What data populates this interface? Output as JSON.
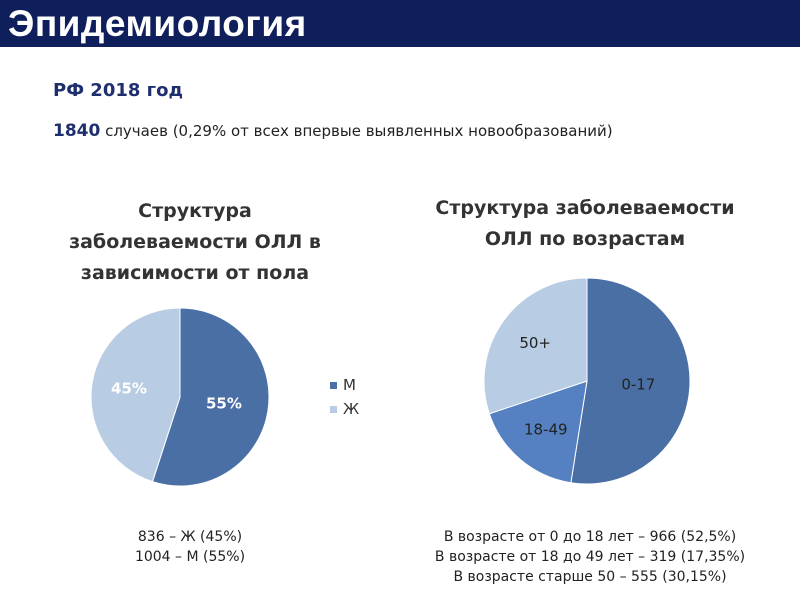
{
  "header": {
    "title": "Эпидемиология"
  },
  "subtitle": {
    "text": "РФ 2018 год"
  },
  "summary": {
    "count": "1840",
    "text": " случаев (0,29% от всех впервые выявленных новообразований)"
  },
  "chart_data": [
    {
      "type": "pie",
      "title_lines": [
        "Структура",
        "заболеваемости ОЛЛ в",
        "зависимости от пола"
      ],
      "slices": [
        {
          "label": "М",
          "value": 55,
          "text": "55%",
          "color": "#4a6fa5"
        },
        {
          "label": "Ж",
          "value": 45,
          "text": "45%",
          "color": "#b8cce4"
        }
      ],
      "legend": [
        "М",
        "Ж"
      ],
      "legend_position": "right",
      "notes": [
        "836 – Ж (45%)",
        "1004 – М (55%)"
      ]
    },
    {
      "type": "pie",
      "title_lines": [
        "Структура заболеваемости",
        "ОЛЛ по возрастам"
      ],
      "slices": [
        {
          "label": "0-17",
          "value": 52.5,
          "color": "#4a6fa5"
        },
        {
          "label": "18-49",
          "value": 17.35,
          "color": "#5581c2"
        },
        {
          "label": "50+",
          "value": 30.15,
          "color": "#b8cce4"
        }
      ],
      "notes": [
        "В возрасте от 0 до 18 лет – 966  (52,5%)",
        "В возрасте от 18 до 49 лет – 319 (17,35%)",
        "В возрасте старше 50 – 555 (30,15%)"
      ]
    }
  ]
}
